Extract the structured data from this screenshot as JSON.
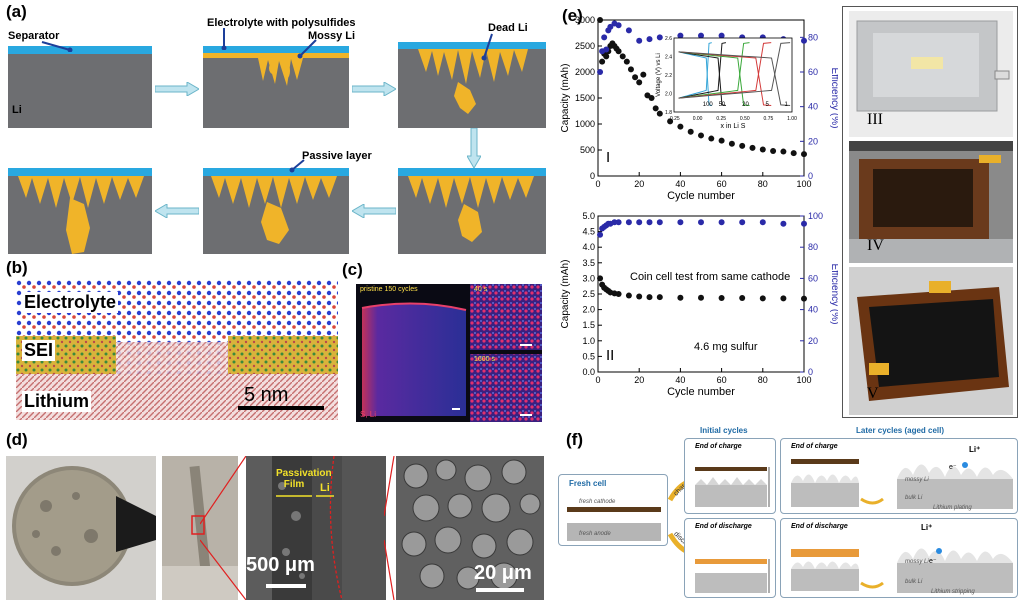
{
  "panels": {
    "a": "(a)",
    "b": "(b)",
    "c": "(c)",
    "d": "(d)",
    "e": "(e)",
    "f": "(f)"
  },
  "panel_a": {
    "separator": "Separator",
    "li": "Li",
    "electrolyte": "Electrolyte with polysulfides",
    "mossy": "Mossy Li",
    "dead": "Dead Li",
    "passive": "Passive layer"
  },
  "panel_b": {
    "electrolyte": "Electrolyte",
    "sei": "SEI",
    "lithium": "Lithium",
    "scale": "5 nm"
  },
  "panel_c": {
    "title": "pristine 150 cycles",
    "t1": "40 s",
    "t2": "1600 s",
    "legend": "S, Li"
  },
  "panel_d": {
    "passivation": "Passivation Film",
    "li": "Li",
    "scale1": "500 μm",
    "scale2": "20 μm"
  },
  "panel_e": {
    "top": {
      "ylabel_left": "Capacity (mAh)",
      "ylabel_right": "Efficiency (%)",
      "xlabel": "Cycle number",
      "roman": "I",
      "yticks": [
        "0",
        "500",
        "1000",
        "1500",
        "2000",
        "2500",
        "3000"
      ],
      "yticks_right": [
        "0",
        "20",
        "40",
        "60",
        "80"
      ],
      "xticks": [
        "0",
        "20",
        "40",
        "60",
        "80",
        "100"
      ],
      "inset": {
        "ylabel": "Voltage (V) vs Li",
        "xlabel": "x in Li S",
        "xticks": [
          "-0.25",
          "0.00",
          "0.25",
          "0.50",
          "0.75",
          "1.00"
        ],
        "yticks": [
          "1.8",
          "2.0",
          "2.2",
          "2.4",
          "2.6"
        ],
        "curve_labels": [
          "100",
          "50",
          "20",
          "5",
          "1"
        ]
      }
    },
    "bottom": {
      "ylabel_left": "Capacity (mAh)",
      "ylabel_right": "Efficiency (%)",
      "xlabel": "Cycle number",
      "roman": "II",
      "note1": "Coin cell test from same cathode",
      "note2": "4.6 mg sulfur",
      "yticks": [
        "0.0",
        "0.5",
        "1.0",
        "1.5",
        "2.0",
        "2.5",
        "3.0",
        "3.5",
        "4.0",
        "4.5",
        "5.0"
      ],
      "yticks_right": [
        "0",
        "20",
        "40",
        "60",
        "80",
        "100"
      ],
      "xticks": [
        "0",
        "20",
        "40",
        "60",
        "80",
        "100"
      ]
    },
    "photos": [
      "III",
      "IV",
      "V"
    ]
  },
  "panel_f": {
    "fresh_cell": "Fresh cell",
    "fresh_cathode": "fresh cathode",
    "fresh_anode": "fresh anode",
    "charge": "charge",
    "discharge": "disch.",
    "initial": "Initial cycles",
    "later": "Later cycles (aged cell)",
    "end_charge": "End of charge",
    "end_discharge": "End of discharge",
    "mossy_li": "mossy Li",
    "bulk_li": "bulk Li",
    "plating": "Lithium plating",
    "stripping": "Lithium stripping",
    "li_plus": "Li⁺",
    "e_minus": "e⁻"
  },
  "chart_data": [
    {
      "type": "scatter",
      "title": "",
      "xlabel": "Cycle number",
      "ylabel": "Capacity (mAh)",
      "y2label": "Efficiency (%)",
      "xlim": [
        0,
        100
      ],
      "ylim": [
        0,
        3000
      ],
      "y2lim": [
        0,
        90
      ],
      "series": [
        {
          "name": "Capacity",
          "color": "#111111",
          "x": [
            1,
            2,
            3,
            4,
            5,
            6,
            7,
            8,
            9,
            10,
            12,
            14,
            16,
            18,
            20,
            22,
            24,
            26,
            28,
            30,
            35,
            40,
            45,
            50,
            55,
            60,
            65,
            70,
            75,
            80,
            85,
            90,
            95,
            100
          ],
          "y": [
            3000,
            2200,
            2350,
            2300,
            2400,
            2500,
            2550,
            2500,
            2450,
            2400,
            2300,
            2200,
            2050,
            1900,
            1800,
            1950,
            1550,
            1500,
            1300,
            1200,
            1050,
            950,
            850,
            780,
            720,
            680,
            620,
            580,
            540,
            510,
            480,
            470,
            440,
            420
          ]
        },
        {
          "name": "Efficiency",
          "color": "#2a2aa8",
          "x": [
            1,
            2,
            3,
            4,
            5,
            6,
            8,
            10,
            15,
            20,
            25,
            30,
            40,
            50,
            60,
            70,
            80,
            90,
            100
          ],
          "y": [
            60,
            72,
            80,
            73,
            84,
            86,
            88,
            87,
            84,
            78,
            79,
            80,
            81,
            81,
            81,
            80,
            80,
            79,
            78
          ]
        }
      ]
    },
    {
      "type": "scatter",
      "title": "",
      "xlabel": "Cycle number",
      "ylabel": "Capacity (mAh)",
      "y2label": "Efficiency (%)",
      "xlim": [
        0,
        100
      ],
      "ylim": [
        0,
        5
      ],
      "y2lim": [
        0,
        100
      ],
      "series": [
        {
          "name": "Capacity",
          "color": "#111111",
          "x": [
            1,
            2,
            3,
            4,
            5,
            6,
            8,
            10,
            15,
            20,
            25,
            30,
            40,
            50,
            60,
            70,
            80,
            90,
            100
          ],
          "y": [
            3.0,
            2.8,
            2.7,
            2.65,
            2.6,
            2.55,
            2.52,
            2.5,
            2.45,
            2.42,
            2.4,
            2.4,
            2.38,
            2.38,
            2.37,
            2.37,
            2.36,
            2.36,
            2.35
          ]
        },
        {
          "name": "Efficiency",
          "color": "#2a2aa8",
          "x": [
            1,
            2,
            3,
            4,
            5,
            6,
            8,
            10,
            15,
            20,
            25,
            30,
            40,
            50,
            60,
            70,
            80,
            90,
            100
          ],
          "y": [
            88,
            92,
            93,
            94,
            95,
            95,
            96,
            96,
            96,
            96,
            96,
            96,
            96,
            96,
            96,
            96,
            96,
            95,
            95
          ]
        }
      ]
    }
  ]
}
